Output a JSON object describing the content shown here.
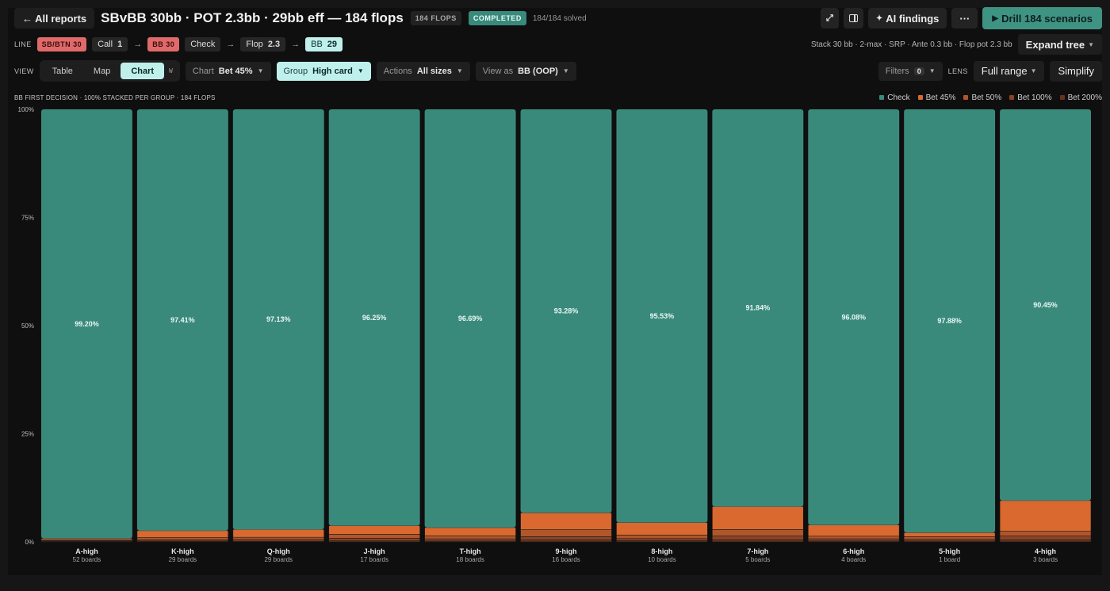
{
  "header": {
    "back_label": "← All reports",
    "title": "SBvBB 30bb · POT 2.3bb · 29bb eff — 184 flops",
    "flops_tag": "184 FLOPS",
    "status": "COMPLETED",
    "solved": "184/184 solved",
    "ai_findings": "AI findings",
    "more": "···",
    "drill": "Drill 184 scenarios"
  },
  "line": {
    "label": "LINE",
    "steps": [
      {
        "tag": "SB/BTN 30"
      },
      {
        "label": "Call",
        "value": "1"
      },
      {
        "tag": "BB 30"
      },
      {
        "label": "Check"
      },
      {
        "label": "Flop",
        "value": "2.3"
      },
      {
        "label": "BB",
        "value": "29"
      }
    ],
    "arrow": "→",
    "info": "Stack 30 bb · 2-max · SRP · Ante 0.3 bb · Flop pot 2.3 bb",
    "expand": "Expand tree"
  },
  "view": {
    "label": "VIEW",
    "tabs": [
      "Table",
      "Map",
      "Chart"
    ],
    "active": "Chart",
    "key_hint": "W",
    "chart_sel": {
      "label": "Chart",
      "value": "Bet 45%"
    },
    "group_sel": {
      "label": "Group",
      "value": "High card"
    },
    "actions_sel": {
      "label": "Actions",
      "value": "All sizes"
    },
    "viewas_sel": {
      "label": "View as",
      "value": "BB (OOP)"
    },
    "filters": {
      "label": "Filters",
      "value": "0"
    },
    "lens": "LENS",
    "range": "Full range",
    "simplify": "Simplify"
  },
  "colors": {
    "check": "#3a8a7c",
    "bet45": "#d9692f",
    "bet50": "#b0562b",
    "bet100": "#8a4325",
    "bet200": "#66321e",
    "accent": "#bff0ec"
  },
  "chart_data": {
    "type": "bar",
    "stacked": true,
    "title": "BB FIRST DECISION · 100% STACKED PER GROUP · 184 FLOPS",
    "categories": [
      "A-high",
      "K-high",
      "Q-high",
      "J-high",
      "T-high",
      "9-high",
      "8-high",
      "7-high",
      "6-high",
      "5-high",
      "4-high"
    ],
    "subcategories": [
      "52 boards",
      "29 boards",
      "29 boards",
      "17 boards",
      "18 boards",
      "16 boards",
      "10 boards",
      "5 boards",
      "4 boards",
      "1 board",
      "3 boards"
    ],
    "y_ticks": [
      "0%",
      "25%",
      "50%",
      "75%",
      "100%"
    ],
    "ylim": [
      0,
      100
    ],
    "legend_position": "top-right",
    "series": [
      {
        "name": "Check",
        "values": [
          99.2,
          97.41,
          97.13,
          96.25,
          96.69,
          93.28,
          95.53,
          91.84,
          96.08,
          97.88,
          90.45
        ],
        "labels": [
          "99.20%",
          "97.41%",
          "97.13%",
          "96.25%",
          "96.69%",
          "93.28%",
          "95.53%",
          "91.84%",
          "96.08%",
          "97.88%",
          "90.45%"
        ]
      },
      {
        "name": "Bet 45%",
        "values": [
          0.3,
          1.6,
          1.8,
          2.0,
          1.9,
          3.9,
          2.9,
          5.3,
          2.6,
          0.9,
          7.1
        ]
      },
      {
        "name": "Bet 50%",
        "values": [
          0.2,
          0.5,
          0.5,
          0.9,
          0.7,
          1.6,
          0.8,
          1.5,
          0.6,
          0.6,
          1.1
        ]
      },
      {
        "name": "Bet 100%",
        "values": [
          0.2,
          0.3,
          0.4,
          0.6,
          0.5,
          0.8,
          0.5,
          0.9,
          0.5,
          0.4,
          0.9
        ]
      },
      {
        "name": "Bet 200%",
        "values": [
          0.1,
          0.19,
          0.17,
          0.25,
          0.21,
          0.42,
          0.27,
          0.46,
          0.22,
          0.22,
          0.45
        ]
      }
    ]
  }
}
